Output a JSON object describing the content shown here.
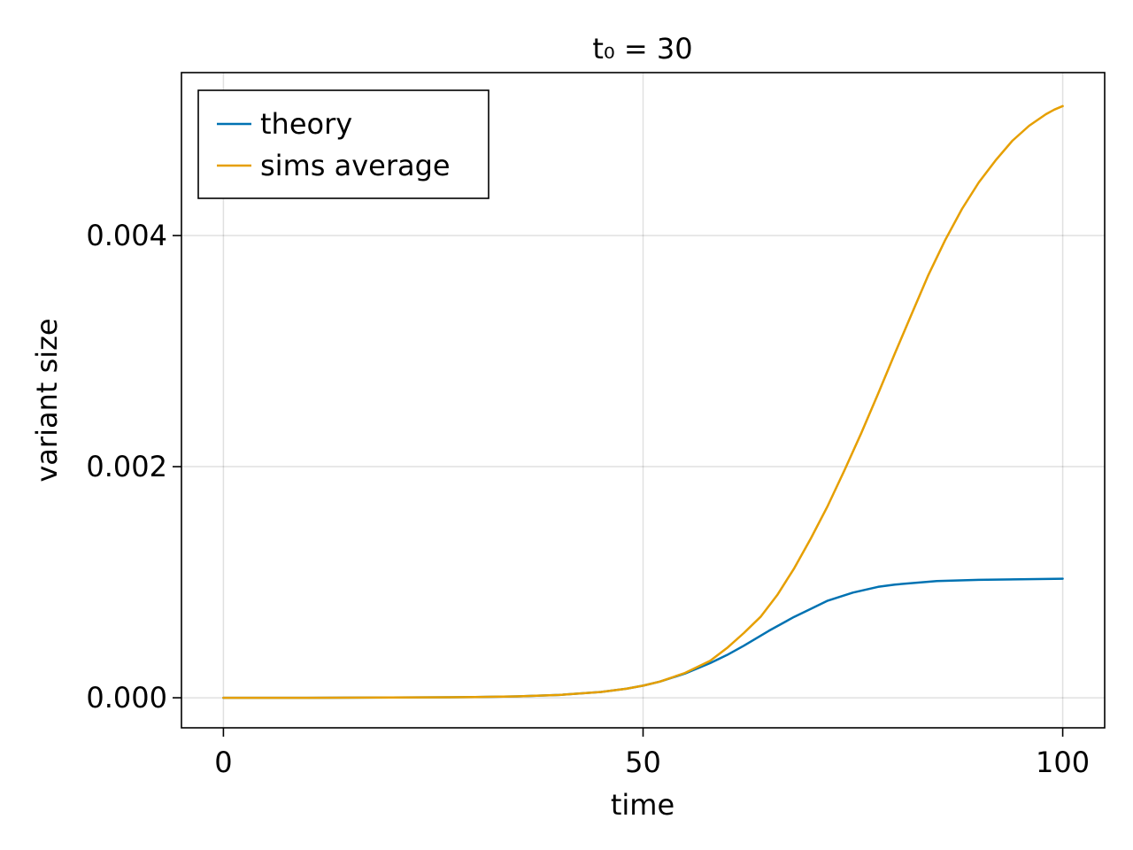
{
  "chart_data": {
    "type": "line",
    "title": "t₀ = 30",
    "xlabel": "time",
    "ylabel": "variant size",
    "xlim": [
      -5,
      105
    ],
    "ylim": [
      -0.00026,
      0.00541
    ],
    "x_ticks": [
      0,
      50,
      100
    ],
    "x_tick_labels": [
      "0",
      "50",
      "100"
    ],
    "y_ticks": [
      0.0,
      0.002,
      0.004
    ],
    "y_tick_labels": [
      "0.000",
      "0.002",
      "0.004"
    ],
    "grid": true,
    "legend_position": "top-left",
    "series": [
      {
        "name": "theory",
        "color": "#0072b2",
        "x": [
          0,
          10,
          20,
          30,
          35,
          40,
          45,
          48,
          50,
          52,
          55,
          58,
          60,
          62,
          65,
          68,
          70,
          72,
          75,
          78,
          80,
          85,
          90,
          95,
          100
        ],
        "y": [
          0.0,
          0.0,
          2e-06,
          6e-06,
          1.2e-05,
          2.4e-05,
          5e-05,
          7.8e-05,
          0.000105,
          0.00014,
          0.00021,
          0.0003,
          0.00037,
          0.00045,
          0.00058,
          0.0007,
          0.00077,
          0.00084,
          0.00091,
          0.00096,
          0.00098,
          0.00101,
          0.00102,
          0.001025,
          0.00103
        ]
      },
      {
        "name": "sims average",
        "color": "#e69f00",
        "x": [
          0,
          10,
          20,
          30,
          35,
          40,
          45,
          48,
          50,
          52,
          55,
          58,
          60,
          62,
          64,
          66,
          68,
          70,
          72,
          74,
          76,
          78,
          80,
          82,
          84,
          86,
          88,
          90,
          92,
          94,
          96,
          98,
          99,
          100
        ],
        "y": [
          0.0,
          0.0,
          2e-06,
          6e-06,
          1.2e-05,
          2.4e-05,
          5e-05,
          7.8e-05,
          0.000105,
          0.00014,
          0.000215,
          0.00032,
          0.00043,
          0.00056,
          0.0007,
          0.00089,
          0.00112,
          0.00138,
          0.00166,
          0.00197,
          0.00229,
          0.00263,
          0.00298,
          0.00332,
          0.00366,
          0.00396,
          0.00423,
          0.00446,
          0.00465,
          0.00482,
          0.00495,
          0.00505,
          0.00509,
          0.00512
        ]
      }
    ]
  }
}
